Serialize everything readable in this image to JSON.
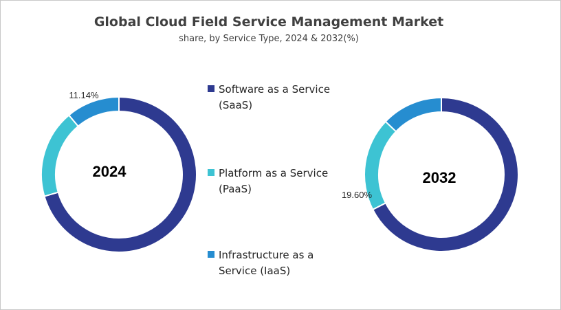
{
  "chart_data": {
    "type": "pie",
    "title": "Global Cloud Field Service Management Market",
    "subtitle": "share, by Service Type, 2024 & 2032(%)",
    "categories": [
      "Software as a Service (SaaS)",
      "Platform as a Service (PaaS)",
      "Infrastructure as a Service (IaaS)"
    ],
    "colors": [
      "#2E3A90",
      "#3DC3D3",
      "#268DD0"
    ],
    "donuts": [
      {
        "center_label": "2024",
        "values": [
          70.5,
          18.36,
          11.14
        ],
        "data_labels": [
          "",
          "",
          "11.14%"
        ]
      },
      {
        "center_label": "2032",
        "values": [
          67.5,
          19.6,
          12.9
        ],
        "data_labels": [
          "",
          "19.60%",
          ""
        ]
      }
    ],
    "legend_position": "center"
  }
}
